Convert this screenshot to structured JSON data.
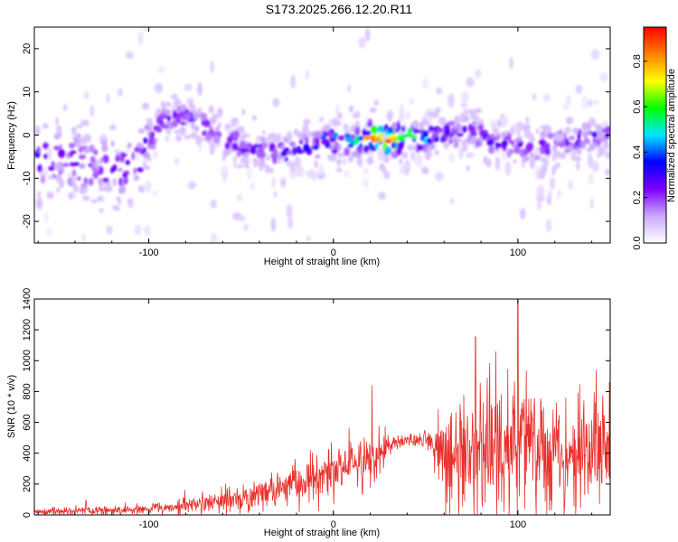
{
  "title": "S173.2025.266.12.20.R11",
  "chart_data": [
    {
      "type": "heatmap",
      "name": "spectrogram",
      "xlabel": "Height of straight line (km)",
      "ylabel": "Frequency (Hz)",
      "xlim": [
        -162,
        150
      ],
      "ylim": [
        -25,
        25
      ],
      "xticks": [
        -100,
        0,
        100
      ],
      "yticks": [
        -20,
        -10,
        0,
        10,
        20
      ],
      "colorbar": {
        "label": "Normalized spectral amplitude",
        "range": [
          0,
          0.95
        ],
        "ticks": [
          0.0,
          0.2,
          0.4,
          0.6,
          0.8
        ],
        "colors": [
          "#ffffff",
          "#c9a8ff",
          "#7d00ff",
          "#0000ff",
          "#00e6ff",
          "#00ff00",
          "#ffff00",
          "#ff8000",
          "#ff0000"
        ]
      },
      "ridge": {
        "x": [
          -150,
          -130,
          -115,
          -105,
          -95,
          -85,
          -75,
          -60,
          -45,
          -35,
          -25,
          -10,
          0,
          10,
          20,
          30,
          40,
          50,
          60,
          75,
          90,
          105,
          120,
          135,
          150
        ],
        "y": [
          -5,
          -7,
          -8,
          -5,
          2,
          5,
          3,
          -1,
          -3,
          -4,
          -4,
          -2,
          -1,
          -1.5,
          -0.5,
          -1.5,
          0,
          -1,
          0,
          1,
          -2,
          -3,
          -2,
          -1,
          1
        ],
        "peak_amplitude": [
          0.35,
          0.3,
          0.3,
          0.35,
          0.3,
          0.3,
          0.3,
          0.3,
          0.3,
          0.3,
          0.35,
          0.45,
          0.5,
          0.5,
          0.95,
          0.95,
          0.7,
          0.5,
          0.4,
          0.3,
          0.3,
          0.3,
          0.3,
          0.3,
          0.3
        ]
      }
    },
    {
      "type": "line",
      "name": "snr",
      "xlabel": "Height of straight line (km)",
      "ylabel": "SNR (10 * v/v)",
      "xlim": [
        -162,
        150
      ],
      "ylim": [
        0,
        1400
      ],
      "xticks": [
        -100,
        0,
        100
      ],
      "yticks": [
        0,
        200,
        400,
        600,
        800,
        1000,
        1200,
        1400
      ],
      "color": "#e8302c",
      "envelope": {
        "x": [
          -162,
          -140,
          -120,
          -100,
          -80,
          -60,
          -40,
          -20,
          0,
          20,
          25,
          30,
          40,
          50,
          55,
          60,
          80,
          100,
          120,
          150
        ],
        "mean": [
          20,
          25,
          30,
          40,
          60,
          90,
          130,
          200,
          280,
          350,
          420,
          460,
          480,
          490,
          420,
          400,
          420,
          420,
          420,
          420
        ],
        "spread": [
          20,
          25,
          30,
          35,
          50,
          70,
          90,
          120,
          150,
          180,
          160,
          60,
          40,
          40,
          150,
          350,
          400,
          400,
          380,
          350
        ]
      },
      "peaks": [
        {
          "x": -134,
          "y": 95
        },
        {
          "x": 21,
          "y": 840
        },
        {
          "x": 100,
          "y": 1400
        },
        {
          "x": 77,
          "y": 1155
        },
        {
          "x": 88,
          "y": 1060
        }
      ]
    }
  ]
}
